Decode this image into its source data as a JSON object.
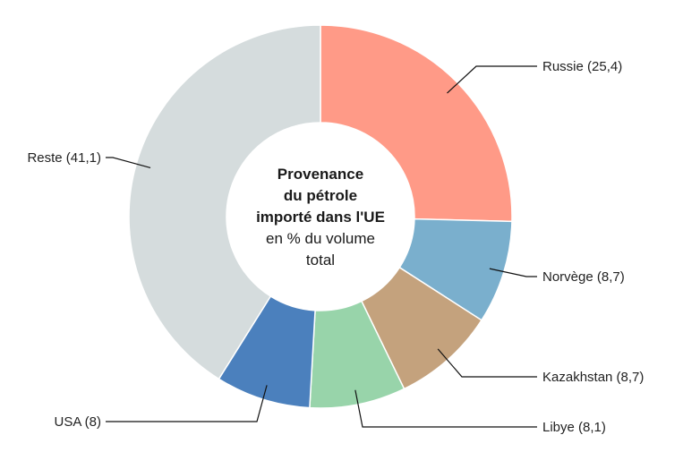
{
  "chart_data": {
    "type": "pie",
    "variant": "donut",
    "title_lines": [
      "Provenance",
      "du pétrole",
      "importé dans l'UE"
    ],
    "subtitle_lines": [
      "en % du volume",
      "total"
    ],
    "unit": "%",
    "slices": [
      {
        "name": "Russie",
        "value": 25.4,
        "label": "Russie (25,4)",
        "color": "#ff9a87"
      },
      {
        "name": "Norvège",
        "value": 8.7,
        "label": "Norvège (8,7)",
        "color": "#7aafcd"
      },
      {
        "name": "Kazakhstan",
        "value": 8.7,
        "label": "Kazakhstan (8,7)",
        "color": "#c4a27d"
      },
      {
        "name": "Libye",
        "value": 8.1,
        "label": "Libye (8,1)",
        "color": "#98d4aa"
      },
      {
        "name": "USA",
        "value": 8,
        "label": "USA (8)",
        "color": "#4b80bd"
      },
      {
        "name": "Reste",
        "value": 41.1,
        "label": "Reste (41,1)",
        "color": "#d5dcdd"
      }
    ]
  }
}
